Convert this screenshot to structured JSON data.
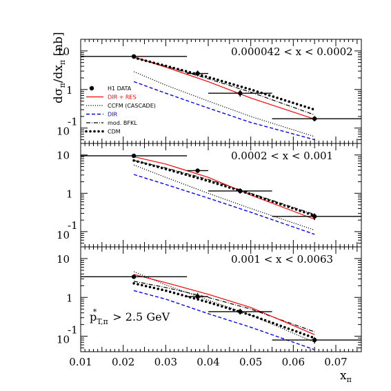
{
  "chart_data": {
    "type": "line",
    "xlim": [
      0.01,
      0.076
    ],
    "ylim_log": [
      0.04,
      20
    ],
    "x_ticks": [
      "0.01",
      "0.02",
      "0.03",
      "0.04",
      "0.05",
      "0.06",
      "0.07"
    ],
    "xlabel": "x",
    "xlabel_sub": "π",
    "ylabel": "dσπ/dxπ [nb]",
    "y_tick_labels": {
      "ten": "10",
      "one": "1",
      "tenth_base": "10",
      "tenth_exp": "-1"
    },
    "annotation": {
      "main": "p",
      "sub": "T,π",
      "sup": "*",
      "rest": " > 2.5 GeV"
    },
    "legend": {
      "placement": "left, top panel",
      "entries": [
        {
          "label": "H1 DATA",
          "color": "#000000",
          "style": "marker"
        },
        {
          "label": "DIR + RES",
          "color": "#ff0000",
          "style": "solid"
        },
        {
          "label": "CCFM (CASCADE)",
          "color": "#000000",
          "style": "dotted"
        },
        {
          "label": "DIR",
          "color": "#0000ff",
          "style": "dashed"
        },
        {
          "label": "mod. BFKL",
          "color": "#000000",
          "style": "dashdot"
        },
        {
          "label": "CDM",
          "color": "#000000",
          "style": "bigdots"
        }
      ]
    },
    "panels": [
      {
        "label": "0.000042 < x < 0.0002",
        "data": {
          "points": [
            {
              "x": 0.0225,
              "y": 7.2,
              "xlo": 0.01,
              "xhi": 0.035,
              "ylo": 6.6,
              "yhi": 7.8
            },
            {
              "x": 0.0375,
              "y": 2.6,
              "xlo": 0.035,
              "xhi": 0.04,
              "ylo": 2.2,
              "yhi": 3.1
            },
            {
              "x": 0.0475,
              "y": 0.8,
              "xlo": 0.04,
              "xhi": 0.055,
              "ylo": 0.65,
              "yhi": 0.97
            },
            {
              "x": 0.065,
              "y": 0.175,
              "xlo": 0.055,
              "xhi": 0.076,
              "ylo": 0.15,
              "yhi": 0.205
            }
          ]
        },
        "curves": {
          "DIR + RES": [
            [
              0.0225,
              7.0
            ],
            [
              0.03,
              3.8
            ],
            [
              0.04,
              1.6
            ],
            [
              0.05,
              0.6
            ],
            [
              0.065,
              0.17
            ]
          ],
          "CCFM (CASCADE)": [
            [
              0.0225,
              2.9
            ],
            [
              0.03,
              1.3
            ],
            [
              0.04,
              0.5
            ],
            [
              0.05,
              0.2
            ],
            [
              0.065,
              0.06
            ]
          ],
          "DIR": [
            [
              0.0225,
              1.6
            ],
            [
              0.03,
              0.8
            ],
            [
              0.04,
              0.33
            ],
            [
              0.05,
              0.14
            ],
            [
              0.065,
              0.05
            ]
          ],
          "mod. BFKL": [
            [
              0.0225,
              6.8
            ],
            [
              0.03,
              4.0
            ],
            [
              0.04,
              1.9
            ],
            [
              0.05,
              0.85
            ],
            [
              0.065,
              0.22
            ]
          ],
          "CDM": [
            [
              0.0225,
              6.7
            ],
            [
              0.03,
              4.1
            ],
            [
              0.04,
              2.1
            ],
            [
              0.05,
              1.0
            ],
            [
              0.065,
              0.3
            ]
          ]
        }
      },
      {
        "label": "0.0002 < x < 0.001",
        "data": {
          "points": [
            {
              "x": 0.0225,
              "y": 9.5,
              "xlo": 0.01,
              "xhi": 0.035,
              "ylo": 8.7,
              "yhi": 10.3
            },
            {
              "x": 0.0375,
              "y": 3.9,
              "xlo": 0.035,
              "xhi": 0.04,
              "ylo": 3.4,
              "yhi": 4.4
            },
            {
              "x": 0.0475,
              "y": 1.15,
              "xlo": 0.04,
              "xhi": 0.055,
              "ylo": 0.98,
              "yhi": 1.35
            },
            {
              "x": 0.065,
              "y": 0.25,
              "xlo": 0.055,
              "xhi": 0.076,
              "ylo": 0.2,
              "yhi": 0.3
            }
          ]
        },
        "curves": {
          "DIR + RES": [
            [
              0.0225,
              9.0
            ],
            [
              0.03,
              5.8
            ],
            [
              0.04,
              2.6
            ],
            [
              0.05,
              0.9
            ],
            [
              0.065,
              0.21
            ]
          ],
          "CCFM (CASCADE)": [
            [
              0.0225,
              5.5
            ],
            [
              0.03,
              2.6
            ],
            [
              0.04,
              1.0
            ],
            [
              0.05,
              0.4
            ],
            [
              0.065,
              0.11
            ]
          ],
          "DIR": [
            [
              0.0225,
              3.1
            ],
            [
              0.03,
              1.7
            ],
            [
              0.04,
              0.75
            ],
            [
              0.05,
              0.32
            ],
            [
              0.065,
              0.085
            ]
          ],
          "mod. BFKL": [
            [
              0.0225,
              7.2
            ],
            [
              0.03,
              4.6
            ],
            [
              0.04,
              2.3
            ],
            [
              0.05,
              1.0
            ],
            [
              0.065,
              0.28
            ]
          ],
          "CDM": [
            [
              0.0225,
              7.2
            ],
            [
              0.03,
              4.3
            ],
            [
              0.04,
              2.1
            ],
            [
              0.05,
              0.95
            ],
            [
              0.065,
              0.26
            ]
          ]
        }
      },
      {
        "label": "0.001 < x < 0.0063",
        "data": {
          "points": [
            {
              "x": 0.0225,
              "y": 3.4,
              "xlo": 0.01,
              "xhi": 0.035,
              "ylo": 3.0,
              "yhi": 3.8
            },
            {
              "x": 0.0375,
              "y": 1.05,
              "xlo": 0.035,
              "xhi": 0.04,
              "ylo": 0.85,
              "yhi": 1.3
            },
            {
              "x": 0.0475,
              "y": 0.43,
              "xlo": 0.04,
              "xhi": 0.055,
              "ylo": 0.36,
              "yhi": 0.51
            },
            {
              "x": 0.065,
              "y": 0.08,
              "xlo": 0.055,
              "xhi": 0.076,
              "ylo": 0.065,
              "yhi": 0.095
            }
          ]
        },
        "curves": {
          "DIR + RES": [
            [
              0.0225,
              3.9
            ],
            [
              0.03,
              2.4
            ],
            [
              0.04,
              1.2
            ],
            [
              0.05,
              0.55
            ],
            [
              0.065,
              0.11
            ]
          ],
          "CCFM (CASCADE)": [
            [
              0.0225,
              4.6
            ],
            [
              0.03,
              2.1
            ],
            [
              0.04,
              0.85
            ],
            [
              0.05,
              0.35
            ],
            [
              0.065,
              0.07
            ]
          ],
          "DIR": [
            [
              0.0225,
              1.5
            ],
            [
              0.03,
              0.9
            ],
            [
              0.04,
              0.38
            ],
            [
              0.05,
              0.17
            ],
            [
              0.065,
              0.045
            ]
          ],
          "mod. BFKL": [
            [
              0.0225,
              2.6
            ],
            [
              0.03,
              1.8
            ],
            [
              0.04,
              1.0
            ],
            [
              0.05,
              0.5
            ],
            [
              0.065,
              0.13
            ]
          ],
          "CDM": [
            [
              0.0225,
              2.3
            ],
            [
              0.03,
              1.5
            ],
            [
              0.04,
              0.75
            ],
            [
              0.05,
              0.35
            ],
            [
              0.065,
              0.09
            ]
          ]
        }
      }
    ]
  }
}
